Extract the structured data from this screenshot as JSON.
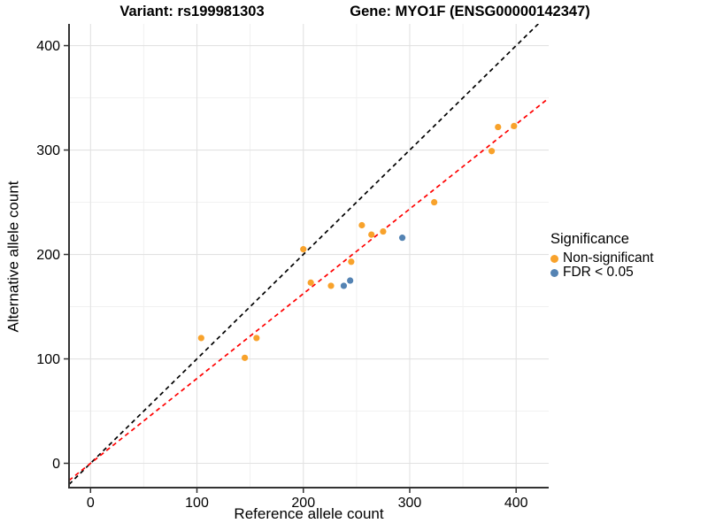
{
  "titles": {
    "variant": "Variant: rs199981303",
    "gene": "Gene: MYO1F (ENSG00000142347)"
  },
  "chart_data": {
    "type": "scatter",
    "xlabel": "Reference allele count",
    "ylabel": "Alternative allele count",
    "xlim": [
      -20.2,
      430.6
    ],
    "ylim": [
      -23.3,
      420.8
    ],
    "xticks": [
      0,
      100,
      200,
      300,
      400
    ],
    "yticks": [
      0,
      100,
      200,
      300,
      400
    ],
    "minor_step": 50,
    "grid": "on",
    "legend": {
      "title": "Significance",
      "position": "right",
      "items": [
        "Non-significant",
        "FDR < 0.05"
      ]
    },
    "series": [
      {
        "name": "Non-significant",
        "color": "#F8A22B",
        "points": [
          [
            104,
            120
          ],
          [
            145,
            101
          ],
          [
            156,
            120
          ],
          [
            200,
            205
          ],
          [
            207,
            173
          ],
          [
            226,
            170
          ],
          [
            245,
            193
          ],
          [
            255,
            228
          ],
          [
            264,
            219
          ],
          [
            275,
            222
          ],
          [
            323,
            250
          ],
          [
            377,
            299
          ],
          [
            383,
            322
          ],
          [
            398,
            323
          ]
        ]
      },
      {
        "name": "FDR < 0.05",
        "color": "#5483B3",
        "points": [
          [
            238,
            170
          ],
          [
            244,
            175
          ],
          [
            293,
            216
          ]
        ]
      }
    ],
    "lines": [
      {
        "name": "identity-line",
        "color": "#000000",
        "style": "dashed",
        "slope": 1.0,
        "intercept": 0
      },
      {
        "name": "fit-line",
        "color": "#FF0000",
        "style": "dashed",
        "slope": 0.812,
        "intercept": 0
      }
    ]
  }
}
